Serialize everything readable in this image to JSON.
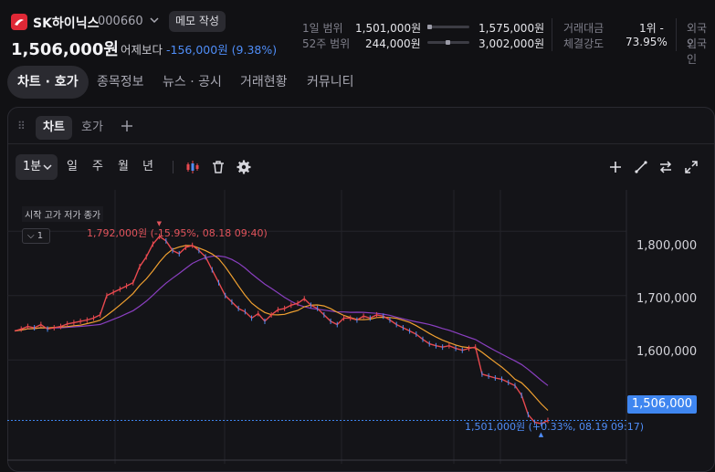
{
  "header": {
    "stock_name": "SK하이닉스",
    "stock_code": "000660",
    "memo_button": "메모 작성",
    "current_price": "1,506,000원",
    "vs_label": "어제보다",
    "change": "-156,000원 (9.38%)",
    "change_color": "#4f8df7",
    "range_1d_label": "1일 범위",
    "range_1d_low": "1,501,000원",
    "range_1d_high": "1,575,000원",
    "range_52w_label": "52주 범위",
    "range_52w_low": "244,000원",
    "range_52w_high": "3,002,000원",
    "volume_label": "거래대금",
    "volume_value": "1위 -",
    "strength_label": "체결강도",
    "strength_value": "73.95%",
    "foreign_label_1": "외국인",
    "foreign_label_2": "외국인"
  },
  "nav_tabs": [
    "차트 · 호가",
    "종목정보",
    "뉴스 · 공시",
    "거래현황",
    "커뮤니티"
  ],
  "panel": {
    "tabs": [
      "차트",
      "호가"
    ],
    "add_tab_icon": "plus-icon",
    "interval_selected": "1분",
    "periods": [
      "일",
      "주",
      "월",
      "년"
    ],
    "tool_icons": [
      "candlestick-icon",
      "trash-icon",
      "gear-icon"
    ],
    "right_icons": [
      "crosshair-plus-icon",
      "draw-line-icon",
      "swap-icon",
      "expand-icon"
    ]
  },
  "chart_data": {
    "type": "line",
    "legend": "시작 고가 저가 종가",
    "indicator_toggle": "1",
    "high_annotation": "1,792,000원 (-15.95%, 08.18 09:40)",
    "low_annotation": "1,501,000원 (+0.33%, 08.19 09:17)",
    "current_price_label": "1,506,000",
    "y_ticks": [
      "1,800,000",
      "1,700,000",
      "1,600,000"
    ],
    "ylim": [
      1450000,
      1850000
    ],
    "price_line_color": "#e8494f",
    "ma_colors": [
      "#f0a030",
      "#8a3fc0"
    ],
    "current_line_color": "#3f86f0",
    "series": [
      {
        "values": [
          1645000,
          1648000,
          1652000,
          1650000,
          1655000,
          1648000,
          1650000,
          1652000,
          1656000,
          1658000,
          1660000,
          1662000,
          1665000,
          1670000,
          1700000,
          1705000,
          1710000,
          1715000,
          1720000,
          1745000,
          1760000,
          1780000,
          1792000,
          1785000,
          1770000,
          1765000,
          1775000,
          1778000,
          1770000,
          1760000,
          1740000,
          1720000,
          1700000,
          1690000,
          1680000,
          1675000,
          1665000,
          1672000,
          1660000,
          1670000,
          1678000,
          1680000,
          1685000,
          1688000,
          1695000,
          1685000,
          1680000,
          1670000,
          1660000,
          1655000,
          1665000,
          1665000,
          1662000,
          1668000,
          1665000,
          1670000,
          1668000,
          1662000,
          1655000,
          1650000,
          1645000,
          1640000,
          1632000,
          1625000,
          1622000,
          1620000,
          1622000,
          1618000,
          1615000,
          1618000,
          1620000,
          1578000,
          1575000,
          1572000,
          1570000,
          1565000,
          1560000,
          1545000,
          1515000,
          1503000,
          1501000,
          1506000
        ]
      }
    ]
  }
}
